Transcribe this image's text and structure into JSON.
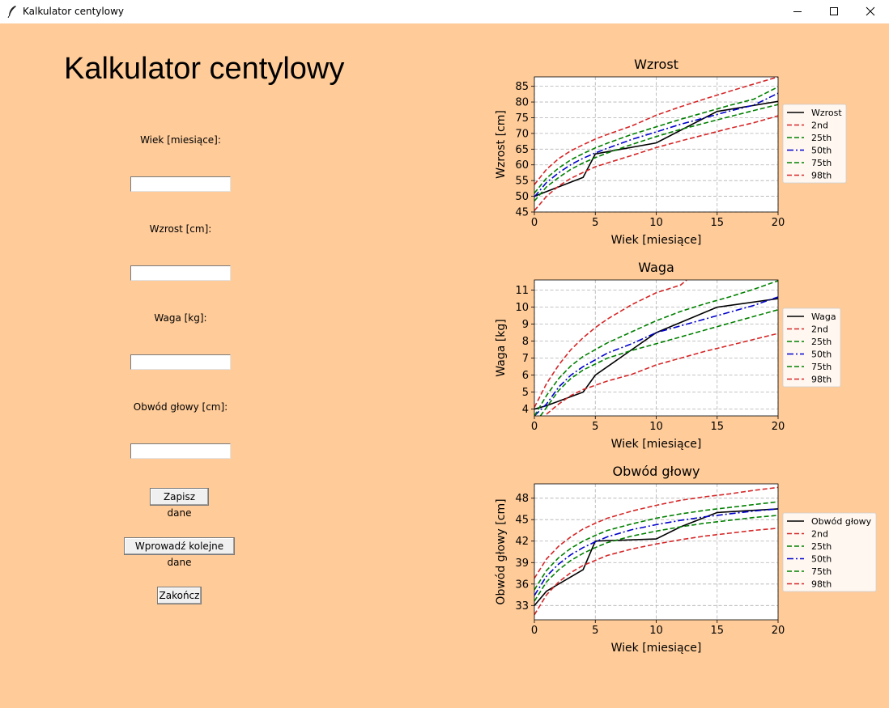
{
  "window": {
    "title": "Kalkulator centylowy"
  },
  "app": {
    "heading": "Kalkulator centylowy",
    "fields": [
      {
        "label": "Wiek [miesiące]:",
        "value": ""
      },
      {
        "label": "Wzrost [cm]:",
        "value": ""
      },
      {
        "label": "Waga [kg]:",
        "value": ""
      },
      {
        "label": "Obwód głowy [cm]:",
        "value": ""
      }
    ],
    "buttons": {
      "save": "Zapisz dane",
      "next": "Wprowadź kolejne dane",
      "quit": "Zakończ"
    }
  },
  "chart_data": [
    {
      "type": "line",
      "title": "Wzrost",
      "xlabel": "Wiek [miesiące]",
      "ylabel": "Wzrost [cm]",
      "xlim": [
        0,
        20
      ],
      "ylim": [
        45,
        88
      ],
      "xticks": [
        0,
        5,
        10,
        15,
        20
      ],
      "yticks": [
        45,
        50,
        55,
        60,
        65,
        70,
        75,
        80,
        85
      ],
      "grid": true,
      "legend": "right",
      "series": [
        {
          "name": "Wzrost",
          "color": "#000000",
          "style": "solid",
          "points": [
            [
              0,
              50
            ],
            [
              1,
              51.5
            ],
            [
              4,
              56
            ],
            [
              5,
              63.5
            ],
            [
              10,
              67
            ],
            [
              15,
              77
            ],
            [
              20,
              80.2
            ]
          ]
        },
        {
          "name": "2nd",
          "color": "#d62728",
          "style": "dash",
          "points": [
            [
              0,
              45.4
            ],
            [
              1,
              50
            ],
            [
              2,
              53.3
            ],
            [
              3,
              55.7
            ],
            [
              4,
              57.6
            ],
            [
              5,
              59.4
            ],
            [
              6,
              60.6
            ],
            [
              8,
              63
            ],
            [
              10,
              65.5
            ],
            [
              12,
              67.6
            ],
            [
              14,
              69.6
            ],
            [
              16,
              71.6
            ],
            [
              18,
              73.4
            ],
            [
              20,
              75.6
            ]
          ]
        },
        {
          "name": "25th",
          "color": "#008000",
          "style": "dash",
          "points": [
            [
              0,
              48.5
            ],
            [
              1,
              53
            ],
            [
              2,
              56
            ],
            [
              3,
              58.6
            ],
            [
              4,
              60.6
            ],
            [
              5,
              62.3
            ],
            [
              6,
              63.8
            ],
            [
              8,
              66.5
            ],
            [
              10,
              69
            ],
            [
              12,
              71.3
            ],
            [
              14,
              73.3
            ],
            [
              16,
              75.3
            ],
            [
              18,
              77.3
            ],
            [
              20,
              79.2
            ]
          ]
        },
        {
          "name": "50th",
          "color": "#0000cd",
          "style": "dashdot",
          "points": [
            [
              0,
              49.8
            ],
            [
              1,
              54.4
            ],
            [
              2,
              57.5
            ],
            [
              3,
              60.1
            ],
            [
              4,
              62.1
            ],
            [
              5,
              63.8
            ],
            [
              6,
              65.3
            ],
            [
              8,
              68.1
            ],
            [
              10,
              70.5
            ],
            [
              12,
              72.9
            ],
            [
              14,
              75
            ],
            [
              16,
              77.1
            ],
            [
              18,
              79
            ],
            [
              20,
              82.8
            ]
          ]
        },
        {
          "name": "75th",
          "color": "#008000",
          "style": "dash",
          "points": [
            [
              0,
              51
            ],
            [
              1,
              55.8
            ],
            [
              2,
              59
            ],
            [
              3,
              61.6
            ],
            [
              4,
              63.6
            ],
            [
              5,
              65.4
            ],
            [
              6,
              66.9
            ],
            [
              8,
              69.7
            ],
            [
              10,
              72.1
            ],
            [
              12,
              74.5
            ],
            [
              14,
              76.7
            ],
            [
              16,
              78.9
            ],
            [
              18,
              80.9
            ],
            [
              20,
              84.8
            ]
          ]
        },
        {
          "name": "98th",
          "color": "#d62728",
          "style": "dash",
          "points": [
            [
              0,
              53.7
            ],
            [
              1,
              58.6
            ],
            [
              2,
              62
            ],
            [
              3,
              64.5
            ],
            [
              4,
              66.4
            ],
            [
              5,
              68.2
            ],
            [
              6,
              69.7
            ],
            [
              8,
              72.4
            ],
            [
              10,
              75.8
            ],
            [
              12,
              78.5
            ],
            [
              14,
              81
            ],
            [
              16,
              83.4
            ],
            [
              18,
              85.7
            ],
            [
              20,
              88
            ]
          ]
        }
      ]
    },
    {
      "type": "line",
      "title": "Waga",
      "xlabel": "Wiek [miesiące]",
      "ylabel": "Waga [kg]",
      "xlim": [
        0,
        20
      ],
      "ylim": [
        3.6,
        11.6
      ],
      "xticks": [
        0,
        5,
        10,
        15,
        20
      ],
      "yticks": [
        4,
        5,
        6,
        7,
        8,
        9,
        10,
        11
      ],
      "grid": true,
      "legend": "right",
      "series": [
        {
          "name": "Waga",
          "color": "#000000",
          "style": "solid",
          "points": [
            [
              0,
              4
            ],
            [
              1,
              4.2
            ],
            [
              4,
              5
            ],
            [
              5,
              6
            ],
            [
              10,
              8.5
            ],
            [
              15,
              10
            ],
            [
              20,
              10.5
            ]
          ]
        },
        {
          "name": "2nd",
          "color": "#d62728",
          "style": "dash",
          "points": [
            [
              1,
              3.7
            ],
            [
              2,
              4.3
            ],
            [
              3,
              4.8
            ],
            [
              4,
              5.15
            ],
            [
              5,
              5.4
            ],
            [
              6,
              5.65
            ],
            [
              8,
              6.05
            ],
            [
              10,
              6.6
            ],
            [
              12,
              7
            ],
            [
              14,
              7.4
            ],
            [
              16,
              7.75
            ],
            [
              18,
              8.1
            ],
            [
              20,
              8.45
            ]
          ]
        },
        {
          "name": "25th",
          "color": "#008000",
          "style": "dash",
          "points": [
            [
              0.5,
              3.6
            ],
            [
              1,
              4.1
            ],
            [
              2,
              5.1
            ],
            [
              3,
              5.8
            ],
            [
              4,
              6.3
            ],
            [
              5,
              6.65
            ],
            [
              6,
              7
            ],
            [
              8,
              7.45
            ],
            [
              10,
              7.85
            ],
            [
              12,
              8.25
            ],
            [
              14,
              8.65
            ],
            [
              16,
              9.05
            ],
            [
              18,
              9.45
            ],
            [
              20,
              9.85
            ]
          ]
        },
        {
          "name": "50th",
          "color": "#0000cd",
          "style": "dashdot",
          "points": [
            [
              0,
              3.6
            ],
            [
              1,
              4.3
            ],
            [
              2,
              5.3
            ],
            [
              3,
              6
            ],
            [
              4,
              6.5
            ],
            [
              5,
              6.9
            ],
            [
              6,
              7.3
            ],
            [
              8,
              7.85
            ],
            [
              10,
              8.5
            ],
            [
              12,
              8.9
            ],
            [
              14,
              9.3
            ],
            [
              16,
              9.7
            ],
            [
              18,
              10.1
            ],
            [
              20,
              10.6
            ]
          ]
        },
        {
          "name": "75th",
          "color": "#008000",
          "style": "dash",
          "points": [
            [
              0,
              3.6
            ],
            [
              1,
              4.8
            ],
            [
              2,
              5.8
            ],
            [
              3,
              6.55
            ],
            [
              4,
              7.1
            ],
            [
              5,
              7.5
            ],
            [
              6,
              7.9
            ],
            [
              8,
              8.55
            ],
            [
              10,
              9.2
            ],
            [
              12,
              9.75
            ],
            [
              14,
              10.2
            ],
            [
              16,
              10.6
            ],
            [
              18,
              11.05
            ],
            [
              20,
              11.55
            ]
          ]
        },
        {
          "name": "98th",
          "color": "#d62728",
          "style": "dash",
          "points": [
            [
              0,
              4.1
            ],
            [
              1,
              5.5
            ],
            [
              2,
              6.6
            ],
            [
              3,
              7.5
            ],
            [
              4,
              8.2
            ],
            [
              5,
              8.8
            ],
            [
              6,
              9.3
            ],
            [
              8,
              10.15
            ],
            [
              10,
              10.85
            ],
            [
              12,
              11.3
            ],
            [
              12.5,
              11.6
            ]
          ]
        }
      ]
    },
    {
      "type": "line",
      "title": "Obwód głowy",
      "xlabel": "Wiek [miesiące]",
      "ylabel": "Obwód głowy [cm]",
      "xlim": [
        0,
        20
      ],
      "ylim": [
        31,
        50
      ],
      "xticks": [
        0,
        5,
        10,
        15,
        20
      ],
      "yticks": [
        33,
        36,
        39,
        42,
        45,
        48
      ],
      "grid": true,
      "legend": "right",
      "series": [
        {
          "name": "Obwód głowy",
          "color": "#000000",
          "style": "solid",
          "points": [
            [
              0,
              33
            ],
            [
              1,
              35
            ],
            [
              4,
              38
            ],
            [
              5,
              42
            ],
            [
              10,
              42.3
            ],
            [
              12,
              44
            ],
            [
              15,
              46
            ],
            [
              20,
              46.5
            ]
          ]
        },
        {
          "name": "2nd",
          "color": "#d62728",
          "style": "dash",
          "points": [
            [
              0,
              31.7
            ],
            [
              1,
              34.5
            ],
            [
              2,
              36.3
            ],
            [
              3,
              37.6
            ],
            [
              4,
              38.6
            ],
            [
              5,
              39.3
            ],
            [
              6,
              40
            ],
            [
              8,
              40.9
            ],
            [
              10,
              41.6
            ],
            [
              12,
              42.2
            ],
            [
              14,
              42.7
            ],
            [
              16,
              43.1
            ],
            [
              18,
              43.5
            ],
            [
              20,
              43.8
            ]
          ]
        },
        {
          "name": "25th",
          "color": "#008000",
          "style": "dash",
          "points": [
            [
              0,
              33.6
            ],
            [
              1,
              36.3
            ],
            [
              2,
              38
            ],
            [
              3,
              39.3
            ],
            [
              4,
              40.3
            ],
            [
              5,
              41.1
            ],
            [
              6,
              41.8
            ],
            [
              8,
              42.7
            ],
            [
              10,
              43.4
            ],
            [
              12,
              44
            ],
            [
              14,
              44.5
            ],
            [
              16,
              44.9
            ],
            [
              18,
              45.3
            ],
            [
              20,
              45.6
            ]
          ]
        },
        {
          "name": "50th",
          "color": "#0000cd",
          "style": "dashdot",
          "points": [
            [
              0,
              34.4
            ],
            [
              1,
              37.1
            ],
            [
              2,
              38.8
            ],
            [
              3,
              40.1
            ],
            [
              4,
              41.1
            ],
            [
              5,
              41.9
            ],
            [
              6,
              42.6
            ],
            [
              8,
              43.6
            ],
            [
              10,
              44.3
            ],
            [
              12,
              44.9
            ],
            [
              14,
              45.4
            ],
            [
              16,
              45.8
            ],
            [
              18,
              46.2
            ],
            [
              20,
              46.5
            ]
          ]
        },
        {
          "name": "75th",
          "color": "#008000",
          "style": "dash",
          "points": [
            [
              0,
              35.2
            ],
            [
              1,
              37.9
            ],
            [
              2,
              39.7
            ],
            [
              3,
              41
            ],
            [
              4,
              42
            ],
            [
              5,
              42.8
            ],
            [
              6,
              43.5
            ],
            [
              8,
              44.4
            ],
            [
              10,
              45.2
            ],
            [
              12,
              45.8
            ],
            [
              14,
              46.3
            ],
            [
              16,
              46.7
            ],
            [
              18,
              47.1
            ],
            [
              20,
              47.5
            ]
          ]
        },
        {
          "name": "98th",
          "color": "#d62728",
          "style": "dash",
          "points": [
            [
              0,
              36.8
            ],
            [
              1,
              39.5
            ],
            [
              2,
              41.3
            ],
            [
              3,
              42.6
            ],
            [
              4,
              43.7
            ],
            [
              5,
              44.5
            ],
            [
              6,
              45.2
            ],
            [
              8,
              46.2
            ],
            [
              10,
              47
            ],
            [
              12,
              47.7
            ],
            [
              14,
              48.2
            ],
            [
              16,
              48.6
            ],
            [
              18,
              49.1
            ],
            [
              20,
              49.5
            ]
          ]
        }
      ]
    }
  ]
}
